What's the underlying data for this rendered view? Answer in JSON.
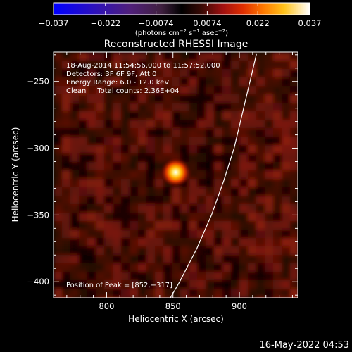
{
  "chart_data": {
    "type": "heatmap",
    "title": "Reconstructed RHESSI Image",
    "xlabel": "Heliocentric X (arcsec)",
    "ylabel": "Heliocentric Y (arcsec)",
    "xlim": [
      760,
      944
    ],
    "ylim": [
      -412,
      -228
    ],
    "x_ticks": [
      800,
      850,
      900
    ],
    "y_ticks": [
      -250,
      -300,
      -350,
      -400
    ],
    "x_tick_labels": [
      "800",
      "850",
      "900"
    ],
    "y_tick_labels": [
      "−250",
      "−300",
      "−350",
      "−400"
    ],
    "colorbar": {
      "min": -0.037,
      "max": 0.037,
      "ticks": [
        -0.037,
        -0.022,
        -0.0074,
        0.0074,
        0.022,
        0.037
      ],
      "tick_labels": [
        "−0.037",
        "−0.022",
        "−0.0074",
        "0.0074",
        "0.022",
        "0.037"
      ],
      "unit_text": "(photons cm",
      "unit_exp1": "−2",
      "unit_mid": " s",
      "unit_exp2": "−1",
      "unit_mid2": " asec",
      "unit_exp3": "−2",
      "unit_end": ")",
      "colormap": "RHESSI: blue-purple (negative) to red-orange-yellow-white (positive)"
    },
    "annotations": [
      "18‐Aug‐2014 11:54:56.000 to 11:57:52.000",
      "Detectors: 3F 6F 9F, Att 0",
      "Energy Range: 6.0 ‐ 12.0 keV",
      "Clean     Total counts: 2.36E+04"
    ],
    "peak": {
      "label": "Position of Peak = [852,−317]",
      "x": 852,
      "y": -317,
      "value": 0.037
    },
    "limb_curve": [
      [
        913,
        -229
      ],
      [
        908,
        -250
      ],
      [
        902,
        -275
      ],
      [
        896,
        -300
      ],
      [
        888,
        -325
      ],
      [
        879,
        -350
      ],
      [
        868,
        -375
      ],
      [
        855,
        -400
      ],
      [
        848,
        -412
      ]
    ],
    "limb_color": "#ffffff",
    "background_color": "#000000",
    "plot_background": "#2a0800"
  },
  "timestamp": "16‐May‐2022 04:53"
}
